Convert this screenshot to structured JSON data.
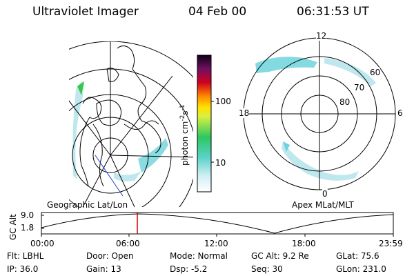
{
  "header": {
    "title": "Ultraviolet Imager",
    "date": "04 Feb 00",
    "time": "06:31:53 UT"
  },
  "colorbar": {
    "label": "photon cm",
    "unit_sup1": "-2",
    "unit_s": "s",
    "unit_sup2": "-1",
    "ticks": [
      "100",
      "10"
    ]
  },
  "geo_panel": {
    "label": "Geographic Lat/Lon"
  },
  "polar_panel": {
    "label": "Apex MLat/MLT",
    "mlt_top": "12",
    "mlt_left": "18",
    "mlt_right": "6",
    "mlt_bottom": "0",
    "lat_labels": [
      "60",
      "70",
      "80"
    ]
  },
  "altitude_plot": {
    "ylabel": "GC Alt",
    "yticks": [
      "9.0",
      "1.8"
    ],
    "xticks": [
      "00:00",
      "06:00",
      "12:00",
      "18:00",
      "23:59"
    ],
    "marker_time": "06:31"
  },
  "info": {
    "filter": "Flt: LBHL",
    "door": "Door: Open",
    "mode": "Mode: Normal",
    "gc_alt": "GC Alt: 9.2 Re",
    "glat": "GLat:  75.6",
    "ip": "IP: 36.0",
    "gain": "Gain: 13",
    "dsp": "Dsp:   -5.2",
    "seq": "Seq: 30",
    "glon": "GLon: 231.0"
  },
  "colors": {
    "aurora_light": "#bfe8ee",
    "aurora_mid": "#6dd3dc",
    "aurora_green": "#39c64a",
    "marker": "#cc0000",
    "track": "#2040c0"
  }
}
